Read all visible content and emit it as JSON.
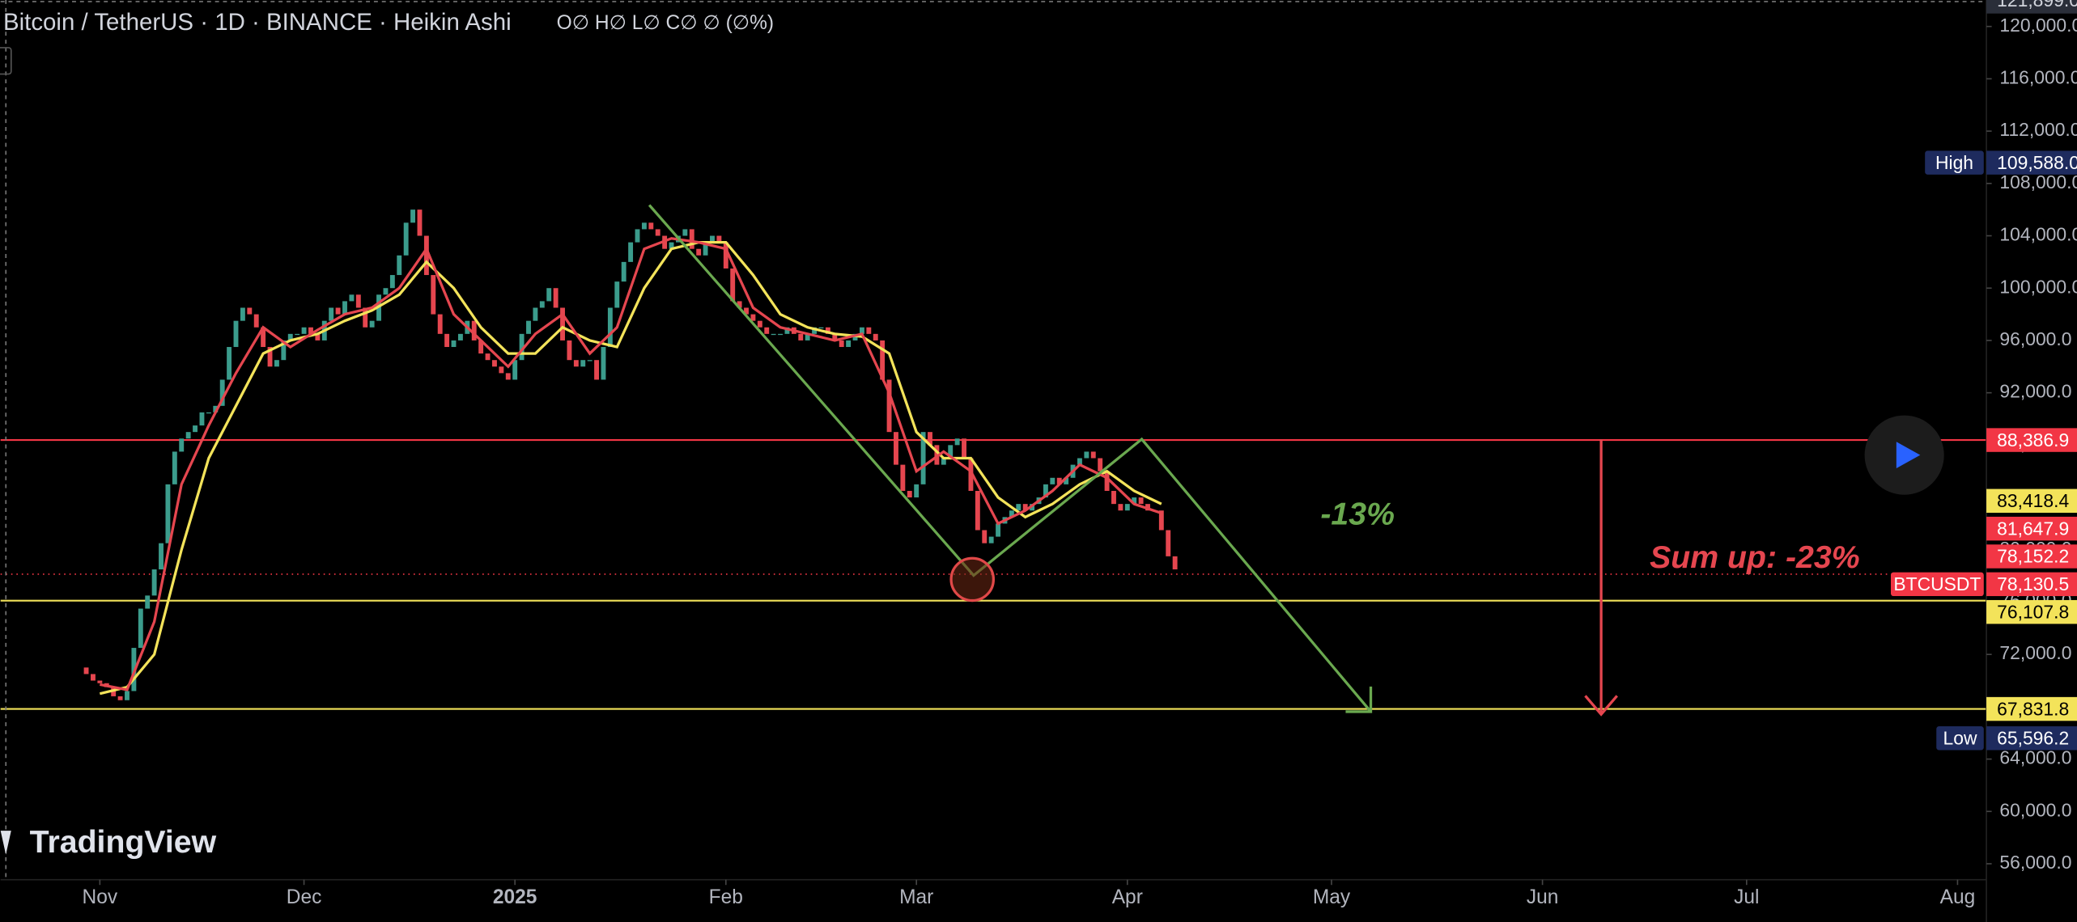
{
  "chart_data": {
    "type": "candlestick",
    "title": "Bitcoin / TetherUS · 1D · BINANCE · Heikin Ashi",
    "ohlc_legend": "O∅ H∅ L∅ C∅ ∅ (∅%)",
    "branding": "TradingView",
    "up_color": "#3b9c8c",
    "down_color": "#e5464f",
    "x": [
      -2,
      -1,
      0,
      1,
      2,
      3,
      4,
      5,
      6,
      7,
      8,
      9,
      10,
      11,
      12,
      13,
      14,
      15,
      16,
      17,
      18,
      19,
      20,
      21,
      22,
      23,
      24,
      25,
      26,
      27,
      28,
      29,
      30,
      31,
      32,
      33,
      34,
      35,
      36,
      37,
      38,
      39,
      40,
      41,
      42,
      43,
      44,
      45,
      46,
      47,
      48,
      49,
      50,
      51,
      52,
      53,
      54,
      55,
      56,
      57,
      58,
      59,
      60,
      61,
      62,
      63,
      64,
      65,
      66,
      67,
      68,
      69,
      70,
      71,
      72,
      73,
      74,
      75,
      76,
      77,
      78,
      79,
      80,
      81,
      82,
      83,
      84,
      85,
      86,
      87,
      88,
      89,
      90,
      91,
      92,
      93,
      94,
      95,
      96,
      97,
      98,
      99,
      100,
      101,
      102,
      103,
      104,
      105,
      106,
      107,
      108,
      109,
      110,
      111,
      112,
      113,
      114,
      115,
      116,
      117,
      118,
      119,
      120,
      121,
      122,
      123,
      124,
      125,
      126,
      127,
      128,
      129,
      130,
      131,
      132,
      133,
      134,
      135,
      136,
      137,
      138,
      139,
      140,
      141,
      142,
      143,
      144,
      145,
      146,
      147,
      148,
      149,
      150,
      151,
      152,
      153,
      154,
      155,
      156,
      157,
      158
    ],
    "open": [
      71000,
      70500,
      70000,
      69800,
      69500,
      68800,
      68500,
      69200,
      72500,
      75500,
      76500,
      78500,
      80500,
      85000,
      87500,
      88500,
      89000,
      89500,
      90500,
      90500,
      91000,
      93000,
      95500,
      97500,
      98500,
      98000,
      97000,
      95500,
      94000,
      94500,
      96000,
      96500,
      96500,
      97000,
      96500,
      96000,
      97500,
      98500,
      98000,
      99000,
      99500,
      98500,
      97000,
      97500,
      99500,
      100000,
      101000,
      102500,
      105000,
      106000,
      104000,
      101000,
      98000,
      96500,
      95500,
      96000,
      96500,
      97500,
      96000,
      95000,
      94500,
      94000,
      93500,
      93000,
      94500,
      96500,
      97500,
      98500,
      99000,
      100000,
      98500,
      96000,
      94500,
      94000,
      94500,
      94500,
      93000,
      95500,
      98500,
      100500,
      102000,
      103500,
      104500,
      105000,
      104500,
      104000,
      103000,
      103500,
      104000,
      104500,
      103000,
      102500,
      103500,
      104000,
      103500,
      101500,
      99000,
      98500,
      98000,
      97500,
      97000,
      96500,
      96500,
      96500,
      97000,
      96500,
      96000,
      96500,
      97000,
      97000,
      96500,
      96000,
      95500,
      96000,
      96500,
      97000,
      96500,
      96000,
      93000,
      89000,
      86500,
      84500,
      84000,
      85000,
      89000,
      88000,
      86500,
      87000,
      88000,
      88500,
      87000,
      84500,
      81500,
      80500,
      81000,
      82000,
      82500,
      83000,
      83500,
      83000,
      83500,
      84000,
      85000,
      85500,
      85000,
      85500,
      86500,
      87000,
      87500,
      87000,
      86000,
      84500,
      83500,
      83000,
      83500,
      84000,
      83500,
      83000,
      83000,
      81500,
      79500
    ],
    "close": [
      70500,
      70000,
      69800,
      69500,
      68800,
      68500,
      69200,
      72500,
      75500,
      76500,
      78500,
      80500,
      85000,
      87500,
      88500,
      89000,
      89500,
      90500,
      90500,
      91000,
      93000,
      95500,
      97500,
      98500,
      98000,
      97000,
      95500,
      94000,
      94500,
      96000,
      96500,
      96500,
      97000,
      96500,
      96000,
      97500,
      98500,
      98000,
      99000,
      99500,
      98500,
      97000,
      97500,
      99500,
      100000,
      101000,
      102500,
      105000,
      106000,
      104000,
      101000,
      98000,
      96500,
      95500,
      96000,
      96500,
      97500,
      96000,
      95000,
      94500,
      94000,
      93500,
      93000,
      94500,
      96500,
      97500,
      98500,
      99000,
      100000,
      98500,
      96000,
      94500,
      94000,
      94500,
      94500,
      93000,
      95500,
      98500,
      100500,
      102000,
      103500,
      104500,
      105000,
      104500,
      104000,
      103000,
      103500,
      104000,
      104500,
      103000,
      102500,
      103500,
      104000,
      103500,
      101500,
      99000,
      98500,
      98000,
      97500,
      97000,
      96500,
      96500,
      96500,
      97000,
      96500,
      96000,
      96500,
      97000,
      97000,
      96500,
      96000,
      95500,
      96000,
      96500,
      97000,
      96500,
      96000,
      93000,
      89000,
      86500,
      84500,
      84000,
      85000,
      89000,
      88000,
      86500,
      87000,
      88000,
      88500,
      87000,
      84500,
      81500,
      80500,
      81000,
      82000,
      82500,
      83000,
      83500,
      83000,
      83500,
      84000,
      85000,
      85500,
      85000,
      85500,
      86500,
      87000,
      87500,
      87000,
      86000,
      84500,
      83500,
      83000,
      83500,
      84000,
      83500,
      83000,
      83000,
      81500,
      79500,
      78500
    ],
    "ma_lines": [
      {
        "color": "#f3e35a",
        "x": [
          0,
          4,
          8,
          12,
          16,
          20,
          24,
          28,
          32,
          36,
          40,
          44,
          48,
          52,
          56,
          60,
          64,
          68,
          72,
          76,
          80,
          84,
          88,
          92,
          96,
          100,
          104,
          108,
          112,
          116,
          120,
          124,
          128,
          132,
          136,
          140,
          144,
          148,
          152,
          156
        ],
        "values": [
          69000,
          69500,
          72000,
          80000,
          87000,
          91000,
          95000,
          96000,
          96500,
          97500,
          98300,
          99500,
          102000,
          100000,
          97000,
          95000,
          95000,
          97000,
          96000,
          95500,
          100000,
          103000,
          103500,
          103500,
          101000,
          98000,
          97000,
          96500,
          96300,
          95000,
          89000,
          87000,
          87000,
          84000,
          82500,
          83500,
          85000,
          86000,
          84500,
          83500
        ]
      },
      {
        "color": "#e5464f",
        "x": [
          0,
          4,
          8,
          12,
          16,
          20,
          24,
          28,
          32,
          36,
          40,
          44,
          48,
          52,
          56,
          60,
          64,
          68,
          72,
          76,
          80,
          84,
          88,
          92,
          96,
          100,
          104,
          108,
          112,
          116,
          120,
          124,
          128,
          132,
          136,
          140,
          144,
          148,
          152,
          156
        ],
        "values": [
          69700,
          69300,
          74500,
          85000,
          89500,
          93500,
          97000,
          95500,
          96800,
          98000,
          98500,
          100000,
          103000,
          98000,
          96000,
          94000,
          96500,
          98000,
          95000,
          97000,
          103000,
          103800,
          103500,
          103000,
          98500,
          97000,
          96500,
          96000,
          96500,
          92000,
          86000,
          87500,
          86000,
          82000,
          83000,
          84500,
          86500,
          85500,
          83500,
          82800
        ]
      }
    ],
    "xlim": [
      -14.59,
      277.24
    ],
    "ylim": [
      54783,
      122022
    ],
    "xticks": [
      {
        "value": 0,
        "label": "Nov"
      },
      {
        "value": 30,
        "label": "Dec"
      },
      {
        "value": 61,
        "label": "2025",
        "bold": true
      },
      {
        "value": 92,
        "label": "Feb"
      },
      {
        "value": 120,
        "label": "Mar"
      },
      {
        "value": 151,
        "label": "Apr"
      },
      {
        "value": 181,
        "label": "May"
      },
      {
        "value": 212,
        "label": "Jun"
      },
      {
        "value": 242,
        "label": "Jul"
      },
      {
        "value": 273,
        "label": "Aug"
      }
    ],
    "yticks": [
      {
        "value": 56000,
        "label": "56,000.0"
      },
      {
        "value": 60000,
        "label": "60,000.0"
      },
      {
        "value": 64000,
        "label": "64,000.0"
      },
      {
        "value": 68000,
        "label": "68,000.0"
      },
      {
        "value": 72000,
        "label": "72,000.0"
      },
      {
        "value": 76000,
        "label": "76,000.0"
      },
      {
        "value": 80000,
        "label": "80,000.0"
      },
      {
        "value": 84000,
        "label": "84,000.0"
      },
      {
        "value": 88000,
        "label": "88,000.0"
      },
      {
        "value": 92000,
        "label": "92,000.0"
      },
      {
        "value": 96000,
        "label": "96,000.0"
      },
      {
        "value": 100000,
        "label": "100,000.0"
      },
      {
        "value": 104000,
        "label": "104,000.0"
      },
      {
        "value": 108000,
        "label": "108,000.0"
      },
      {
        "value": 112000,
        "label": "112,000.0"
      },
      {
        "value": 116000,
        "label": "116,000.0"
      },
      {
        "value": 120000,
        "label": "120,000.0"
      }
    ],
    "crosshair": {
      "value": 121899,
      "label": "121,899.0"
    },
    "badges": [
      {
        "value": 109588,
        "label": "109,588.0",
        "tag": "High",
        "color": "#1e2b5e",
        "text_color": "#ffffff"
      },
      {
        "value": 88386.9,
        "label": "88,386.9",
        "color": "#f23645",
        "text_color": "#ffffff",
        "line": "solid"
      },
      {
        "value": 83418.4,
        "label": "83,418.4",
        "color": "#f3e35a",
        "text_color": "#000000"
      },
      {
        "value": 81647.9,
        "label": "81,647.9",
        "color": "#f23645",
        "text_color": "#ffffff"
      },
      {
        "value": 78152.2,
        "label": "78,152.2",
        "color": "#f23645",
        "text_color": "#ffffff"
      },
      {
        "value": 78130.5,
        "label": "78,130.5",
        "tag": "BTCUSDT",
        "color": "#f23645",
        "text_color": "#ffffff",
        "line": "dotted"
      },
      {
        "value": 76107.8,
        "label": "76,107.8",
        "color": "#f3e35a",
        "text_color": "#000000",
        "line": "solid"
      },
      {
        "value": 67831.8,
        "label": "67,831.8",
        "color": "#f3e35a",
        "text_color": "#000000",
        "line": "solid"
      },
      {
        "value": 65596.2,
        "label": "65,596.2",
        "tag": "Low",
        "color": "#1e2b5e",
        "text_color": "#ffffff"
      }
    ],
    "annotations": [
      "-13%",
      "Sum up: -23%"
    ]
  }
}
